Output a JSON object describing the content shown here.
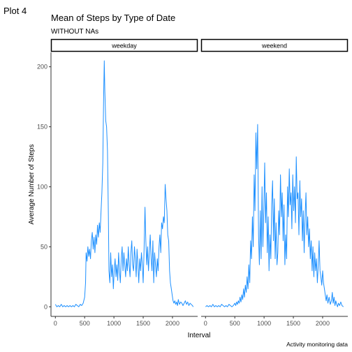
{
  "page": {
    "tag": "Plot 4",
    "caption": "Activity monitoring data"
  },
  "colors": {
    "line": "#1E90FF",
    "axis": "#333333",
    "strip_border": "#000000",
    "background": "#ffffff"
  },
  "chart_data": {
    "type": "line",
    "title": "Mean of Steps by Type of Date",
    "subtitle": "WITHOUT NAs",
    "xlabel": "Interval",
    "ylabel": "Average Number of Steps",
    "xlim": [
      -75,
      2430
    ],
    "ylim": [
      -8,
      212
    ],
    "x_ticks": [
      0,
      500,
      1000,
      1500,
      2000
    ],
    "y_ticks": [
      0,
      50,
      100,
      150,
      200
    ],
    "grid": false,
    "panels": [
      {
        "label": "weekday",
        "points": [
          [
            0,
            2
          ],
          [
            25,
            0
          ],
          [
            50,
            1
          ],
          [
            75,
            0
          ],
          [
            100,
            2
          ],
          [
            125,
            0
          ],
          [
            150,
            1
          ],
          [
            175,
            0
          ],
          [
            200,
            1
          ],
          [
            225,
            0
          ],
          [
            250,
            1
          ],
          [
            275,
            0
          ],
          [
            300,
            1
          ],
          [
            325,
            0
          ],
          [
            350,
            2
          ],
          [
            375,
            1
          ],
          [
            400,
            0
          ],
          [
            425,
            2
          ],
          [
            450,
            1
          ],
          [
            475,
            3
          ],
          [
            500,
            8
          ],
          [
            515,
            20
          ],
          [
            525,
            45
          ],
          [
            540,
            38
          ],
          [
            555,
            50
          ],
          [
            570,
            42
          ],
          [
            585,
            48
          ],
          [
            600,
            40
          ],
          [
            615,
            55
          ],
          [
            630,
            62
          ],
          [
            645,
            48
          ],
          [
            660,
            58
          ],
          [
            675,
            45
          ],
          [
            690,
            60
          ],
          [
            705,
            52
          ],
          [
            720,
            68
          ],
          [
            735,
            58
          ],
          [
            750,
            70
          ],
          [
            765,
            62
          ],
          [
            780,
            80
          ],
          [
            795,
            95
          ],
          [
            810,
            120
          ],
          [
            825,
            175
          ],
          [
            835,
            205
          ],
          [
            845,
            180
          ],
          [
            860,
            155
          ],
          [
            875,
            150
          ],
          [
            890,
            130
          ],
          [
            905,
            75
          ],
          [
            915,
            30
          ],
          [
            930,
            20
          ],
          [
            945,
            45
          ],
          [
            960,
            25
          ],
          [
            975,
            35
          ],
          [
            990,
            15
          ],
          [
            1005,
            30
          ],
          [
            1020,
            40
          ],
          [
            1035,
            25
          ],
          [
            1050,
            35
          ],
          [
            1065,
            22
          ],
          [
            1080,
            45
          ],
          [
            1095,
            30
          ],
          [
            1110,
            20
          ],
          [
            1125,
            40
          ],
          [
            1140,
            50
          ],
          [
            1155,
            30
          ],
          [
            1170,
            45
          ],
          [
            1185,
            35
          ],
          [
            1200,
            25
          ],
          [
            1215,
            40
          ],
          [
            1230,
            30
          ],
          [
            1245,
            50
          ],
          [
            1260,
            35
          ],
          [
            1275,
            25
          ],
          [
            1290,
            45
          ],
          [
            1305,
            55
          ],
          [
            1320,
            35
          ],
          [
            1335,
            30
          ],
          [
            1350,
            50
          ],
          [
            1365,
            40
          ],
          [
            1380,
            25
          ],
          [
            1395,
            48
          ],
          [
            1410,
            35
          ],
          [
            1425,
            20
          ],
          [
            1440,
            40
          ],
          [
            1455,
            30
          ],
          [
            1470,
            45
          ],
          [
            1485,
            35
          ],
          [
            1500,
            20
          ],
          [
            1515,
            48
          ],
          [
            1530,
            83
          ],
          [
            1545,
            55
          ],
          [
            1560,
            35
          ],
          [
            1575,
            50
          ],
          [
            1590,
            30
          ],
          [
            1605,
            45
          ],
          [
            1620,
            60
          ],
          [
            1635,
            40
          ],
          [
            1650,
            30
          ],
          [
            1665,
            55
          ],
          [
            1680,
            20
          ],
          [
            1695,
            45
          ],
          [
            1710,
            35
          ],
          [
            1725,
            25
          ],
          [
            1740,
            40
          ],
          [
            1755,
            30
          ],
          [
            1770,
            50
          ],
          [
            1785,
            60
          ],
          [
            1800,
            45
          ],
          [
            1815,
            70
          ],
          [
            1830,
            65
          ],
          [
            1845,
            75
          ],
          [
            1860,
            70
          ],
          [
            1875,
            102
          ],
          [
            1890,
            90
          ],
          [
            1905,
            80
          ],
          [
            1920,
            60
          ],
          [
            1935,
            55
          ],
          [
            1950,
            30
          ],
          [
            1965,
            20
          ],
          [
            1980,
            15
          ],
          [
            1995,
            10
          ],
          [
            2010,
            5
          ],
          [
            2025,
            3
          ],
          [
            2040,
            5
          ],
          [
            2055,
            2
          ],
          [
            2070,
            4
          ],
          [
            2085,
            1
          ],
          [
            2100,
            6
          ],
          [
            2120,
            2
          ],
          [
            2140,
            4
          ],
          [
            2160,
            3
          ],
          [
            2180,
            1
          ],
          [
            2200,
            3
          ],
          [
            2220,
            5
          ],
          [
            2240,
            2
          ],
          [
            2260,
            4
          ],
          [
            2280,
            1
          ],
          [
            2300,
            3
          ],
          [
            2320,
            2
          ],
          [
            2340,
            1
          ],
          [
            2355,
            0
          ]
        ]
      },
      {
        "label": "weekend",
        "points": [
          [
            0,
            0
          ],
          [
            25,
            1
          ],
          [
            50,
            0
          ],
          [
            75,
            1
          ],
          [
            100,
            0
          ],
          [
            125,
            2
          ],
          [
            150,
            0
          ],
          [
            175,
            1
          ],
          [
            200,
            0
          ],
          [
            225,
            1
          ],
          [
            250,
            0
          ],
          [
            275,
            2
          ],
          [
            300,
            1
          ],
          [
            325,
            0
          ],
          [
            350,
            1
          ],
          [
            375,
            0
          ],
          [
            400,
            2
          ],
          [
            425,
            1
          ],
          [
            450,
            0
          ],
          [
            475,
            1
          ],
          [
            500,
            3
          ],
          [
            515,
            1
          ],
          [
            530,
            4
          ],
          [
            545,
            2
          ],
          [
            560,
            5
          ],
          [
            575,
            3
          ],
          [
            590,
            8
          ],
          [
            605,
            4
          ],
          [
            620,
            10
          ],
          [
            635,
            6
          ],
          [
            650,
            15
          ],
          [
            665,
            8
          ],
          [
            680,
            18
          ],
          [
            695,
            12
          ],
          [
            710,
            25
          ],
          [
            725,
            15
          ],
          [
            740,
            35
          ],
          [
            755,
            20
          ],
          [
            770,
            55
          ],
          [
            785,
            40
          ],
          [
            800,
            75
          ],
          [
            815,
            50
          ],
          [
            830,
            110
          ],
          [
            845,
            80
          ],
          [
            860,
            145
          ],
          [
            875,
            115
          ],
          [
            890,
            152
          ],
          [
            905,
            60
          ],
          [
            920,
            35
          ],
          [
            935,
            80
          ],
          [
            950,
            40
          ],
          [
            965,
            100
          ],
          [
            980,
            50
          ],
          [
            995,
            80
          ],
          [
            1010,
            120
          ],
          [
            1025,
            70
          ],
          [
            1040,
            95
          ],
          [
            1055,
            45
          ],
          [
            1070,
            75
          ],
          [
            1085,
            30
          ],
          [
            1100,
            60
          ],
          [
            1115,
            40
          ],
          [
            1130,
            85
          ],
          [
            1145,
            105
          ],
          [
            1160,
            55
          ],
          [
            1175,
            90
          ],
          [
            1190,
            40
          ],
          [
            1205,
            70
          ],
          [
            1220,
            35
          ],
          [
            1235,
            45
          ],
          [
            1250,
            80
          ],
          [
            1265,
            60
          ],
          [
            1280,
            110
          ],
          [
            1295,
            75
          ],
          [
            1310,
            95
          ],
          [
            1325,
            55
          ],
          [
            1340,
            85
          ],
          [
            1355,
            35
          ],
          [
            1370,
            60
          ],
          [
            1385,
            40
          ],
          [
            1400,
            100
          ],
          [
            1415,
            75
          ],
          [
            1430,
            115
          ],
          [
            1445,
            85
          ],
          [
            1460,
            95
          ],
          [
            1475,
            65
          ],
          [
            1490,
            110
          ],
          [
            1505,
            80
          ],
          [
            1520,
            100
          ],
          [
            1535,
            70
          ],
          [
            1550,
            125
          ],
          [
            1565,
            90
          ],
          [
            1580,
            95
          ],
          [
            1595,
            60
          ],
          [
            1610,
            105
          ],
          [
            1625,
            75
          ],
          [
            1640,
            90
          ],
          [
            1655,
            55
          ],
          [
            1670,
            80
          ],
          [
            1685,
            45
          ],
          [
            1700,
            75
          ],
          [
            1715,
            95
          ],
          [
            1730,
            60
          ],
          [
            1745,
            75
          ],
          [
            1760,
            50
          ],
          [
            1775,
            65
          ],
          [
            1790,
            40
          ],
          [
            1805,
            55
          ],
          [
            1820,
            30
          ],
          [
            1835,
            50
          ],
          [
            1850,
            25
          ],
          [
            1865,
            45
          ],
          [
            1880,
            30
          ],
          [
            1895,
            40
          ],
          [
            1910,
            20
          ],
          [
            1925,
            35
          ],
          [
            1940,
            55
          ],
          [
            1955,
            30
          ],
          [
            1970,
            25
          ],
          [
            1985,
            18
          ],
          [
            2000,
            30
          ],
          [
            2015,
            20
          ],
          [
            2030,
            15
          ],
          [
            2045,
            10
          ],
          [
            2060,
            5
          ],
          [
            2075,
            10
          ],
          [
            2090,
            3
          ],
          [
            2110,
            8
          ],
          [
            2130,
            2
          ],
          [
            2150,
            5
          ],
          [
            2165,
            12
          ],
          [
            2180,
            3
          ],
          [
            2195,
            8
          ],
          [
            2210,
            1
          ],
          [
            2225,
            5
          ],
          [
            2240,
            2
          ],
          [
            2255,
            0
          ],
          [
            2270,
            3
          ],
          [
            2290,
            1
          ],
          [
            2310,
            4
          ],
          [
            2330,
            1
          ],
          [
            2355,
            0
          ]
        ]
      }
    ]
  }
}
